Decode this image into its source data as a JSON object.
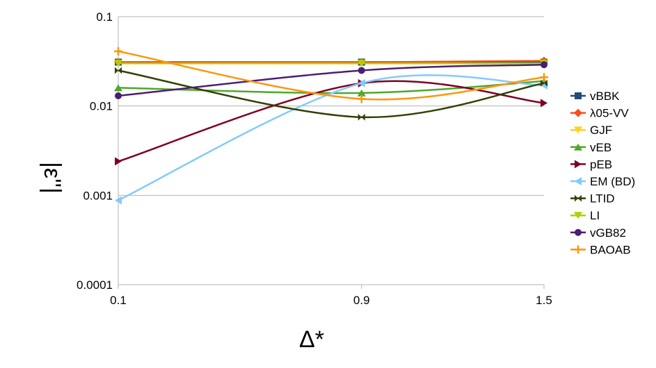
{
  "chart_data": {
    "type": "line",
    "title": "",
    "xlabel": "Δ*",
    "ylabel": "|ε''|",
    "x": [
      "0.1",
      "0.9",
      "1.5"
    ],
    "x_numeric": [
      0.1,
      0.9,
      1.5
    ],
    "y_scale": "log",
    "ylim": [
      0.0001,
      0.1
    ],
    "y_ticks": [
      "0.0001",
      "0.001",
      "0.01",
      "0.1"
    ],
    "grid": "horizontal",
    "legend_position": "right",
    "series": [
      {
        "name": "vBBK",
        "color": "#1f4e79",
        "marker": "square",
        "values": [
          0.031,
          0.031,
          0.031
        ]
      },
      {
        "name": "λ05-VV",
        "color": "#ff4b1a",
        "marker": "diamond",
        "values": [
          0.031,
          0.031,
          0.032
        ]
      },
      {
        "name": "GJF",
        "color": "#ffd320",
        "marker": "triangle-down",
        "values": [
          0.03,
          0.03,
          0.03
        ]
      },
      {
        "name": "vEB",
        "color": "#4ea72e",
        "marker": "triangle-up",
        "values": [
          0.016,
          0.014,
          0.019
        ]
      },
      {
        "name": "pEB",
        "color": "#7e0021",
        "marker": "triangle-right",
        "values": [
          0.0024,
          0.018,
          0.0108
        ]
      },
      {
        "name": "EM (BD)",
        "color": "#83caff",
        "marker": "triangle-left",
        "values": [
          0.00088,
          0.018,
          0.017
        ]
      },
      {
        "name": "LTID",
        "color": "#314004",
        "marker": "bowtie",
        "values": [
          0.025,
          0.0075,
          0.018
        ]
      },
      {
        "name": "LI",
        "color": "#aecf00",
        "marker": "triangle-down",
        "values": [
          0.03,
          0.03,
          0.03
        ]
      },
      {
        "name": "vGB82",
        "color": "#4b1f6f",
        "marker": "circle",
        "values": [
          0.013,
          0.025,
          0.029
        ]
      },
      {
        "name": "BAOAB",
        "color": "#ff950e",
        "marker": "plus",
        "values": [
          0.041,
          0.012,
          0.021
        ]
      }
    ]
  }
}
